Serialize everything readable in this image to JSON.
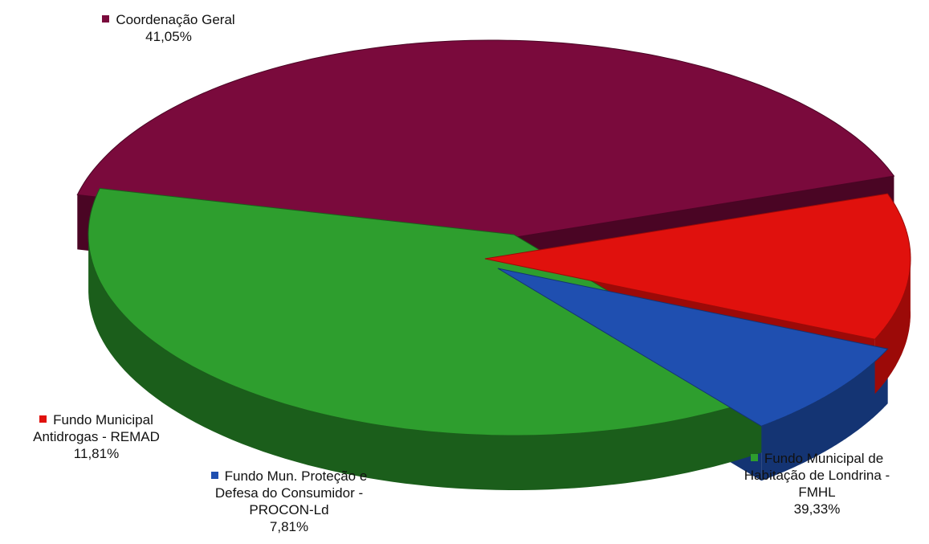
{
  "chart_data": {
    "type": "pie",
    "title": "",
    "slices": [
      {
        "name": "Coordenação Geral",
        "value": 41.05,
        "label_pct": "41,05%",
        "color": "#7a0a3c",
        "dark": "#4a0524"
      },
      {
        "name": "Fundo Municipal de Habitação de Londrina - FMHL",
        "value": 39.33,
        "label_pct": "39,33%",
        "color": "#2e9e2e",
        "dark": "#1b5e1b"
      },
      {
        "name": "Fundo Mun. Proteção e Defesa do Consumidor - PROCON-Ld",
        "value": 7.81,
        "label_pct": "7,81%",
        "color": "#1f4fb0",
        "dark": "#143473"
      },
      {
        "name": "Fundo Municipal Antidrogas - REMAD",
        "value": 11.81,
        "label_pct": "11,81%",
        "color": "#e0110d",
        "dark": "#9c0a08"
      }
    ],
    "legend_placement": "labels beside slices",
    "style": "3d exploded pie"
  },
  "labels": {
    "slice0": {
      "name": "Coordenação Geral",
      "pct": "41,05%"
    },
    "slice1": {
      "name": "Fundo Municipal de\nHabitação de Londrina -\nFMHL",
      "pct": "39,33%"
    },
    "slice2": {
      "name": "Fundo Mun. Proteção e\nDefesa do Consumidor -\nPROCON-Ld",
      "pct": "7,81%"
    },
    "slice3": {
      "name": "Fundo Municipal\nAntidrogas - REMAD",
      "pct": "11,81%"
    }
  }
}
